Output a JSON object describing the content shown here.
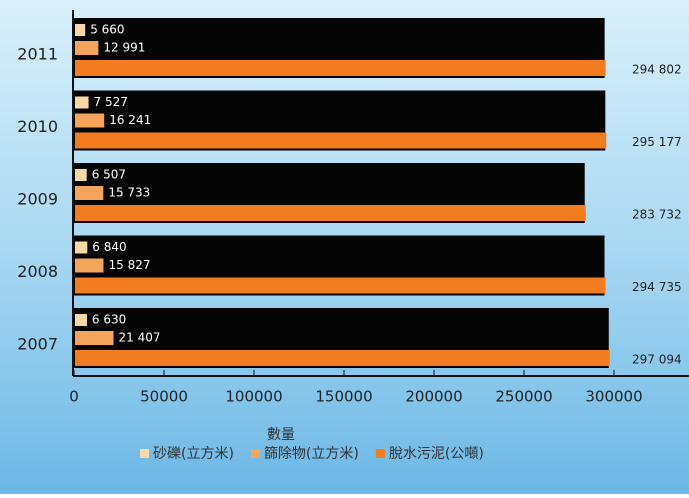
{
  "chart_data": {
    "type": "bar",
    "orientation": "horizontal",
    "x_label": "數量",
    "categories": [
      "2011",
      "2010",
      "2009",
      "2008",
      "2007"
    ],
    "series": [
      {
        "name": "砂礫(立方米)",
        "color": "#f8d9a6",
        "values": [
          5660,
          7527,
          6507,
          6840,
          6630
        ],
        "value_labels": [
          "5 660",
          "7 527",
          "6 507",
          "6 840",
          "6 630"
        ]
      },
      {
        "name": "篩除物(立方米)",
        "color": "#f5a45c",
        "values": [
          12991,
          16241,
          15733,
          15827,
          21407
        ],
        "value_labels": [
          "12 991",
          "16 241",
          "15 733",
          "15 827",
          "21 407"
        ]
      },
      {
        "name": "脫水污泥(公噸)",
        "color": "#f27c1f",
        "values": [
          294802,
          295177,
          283732,
          294735,
          297094
        ],
        "value_labels": [
          "294 802",
          "295 177",
          "283 732",
          "294 735",
          "297 094"
        ]
      }
    ],
    "xlim": [
      0,
      300000
    ],
    "xticks": [
      0,
      50000,
      100000,
      150000,
      200000,
      250000,
      300000
    ]
  }
}
